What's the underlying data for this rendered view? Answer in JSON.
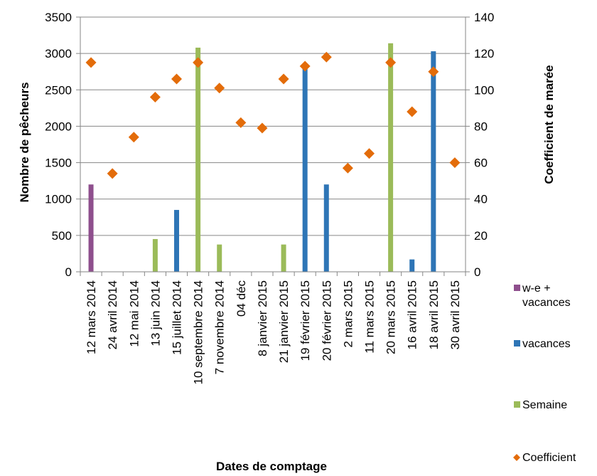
{
  "chart_data": {
    "type": "bar",
    "xlabel": "Dates de comptage",
    "ylabel": "Nombre de pêcheurs",
    "ylabel_right": "Coefficient  de marée",
    "ylim": [
      0,
      3500
    ],
    "ylim_right": [
      0,
      140
    ],
    "y_ticks": [
      0,
      500,
      1000,
      1500,
      2000,
      2500,
      3000,
      3500
    ],
    "y_ticks_right": [
      0,
      20,
      40,
      60,
      80,
      100,
      120,
      140
    ],
    "grid": true,
    "legend_position": "right",
    "categories": [
      "12 mars 2014",
      "24 avril 2014",
      "12 mai 2014",
      "13 juin 2014",
      "15 juillet 2014",
      "10 septembre 2014",
      "7 novembre 2014",
      "04 déc",
      "8 janvier 2015",
      "21 janvier 2015",
      "19 février 2015",
      "20 février 2015",
      "2 mars 2015",
      "11 mars 2015",
      "20 mars 2015",
      "16 avril 2015",
      "18 avril 2015",
      "30 avril 2015"
    ],
    "series": [
      {
        "name": "w-e + vacances",
        "type": "bar",
        "axis": "left",
        "color": "#8E4F8D",
        "values": [
          1200,
          0,
          0,
          0,
          0,
          0,
          0,
          0,
          0,
          0,
          0,
          0,
          0,
          0,
          0,
          0,
          0,
          0
        ]
      },
      {
        "name": "vacances",
        "type": "bar",
        "axis": "left",
        "color": "#2E75B6",
        "values": [
          0,
          0,
          0,
          0,
          850,
          0,
          0,
          0,
          0,
          0,
          2850,
          1200,
          0,
          0,
          0,
          170,
          3030,
          0
        ]
      },
      {
        "name": "Semaine",
        "type": "bar",
        "axis": "left",
        "color": "#9BBB59",
        "values": [
          0,
          0,
          0,
          450,
          0,
          3080,
          375,
          0,
          0,
          375,
          0,
          0,
          0,
          0,
          3140,
          0,
          0,
          0
        ]
      },
      {
        "name": "Coefficient",
        "type": "scatter",
        "axis": "right",
        "color": "#E36C0A",
        "values": [
          115,
          54,
          74,
          96,
          106,
          115,
          101,
          82,
          79,
          106,
          113,
          118,
          57,
          65,
          115,
          88,
          110,
          60
        ]
      }
    ]
  }
}
